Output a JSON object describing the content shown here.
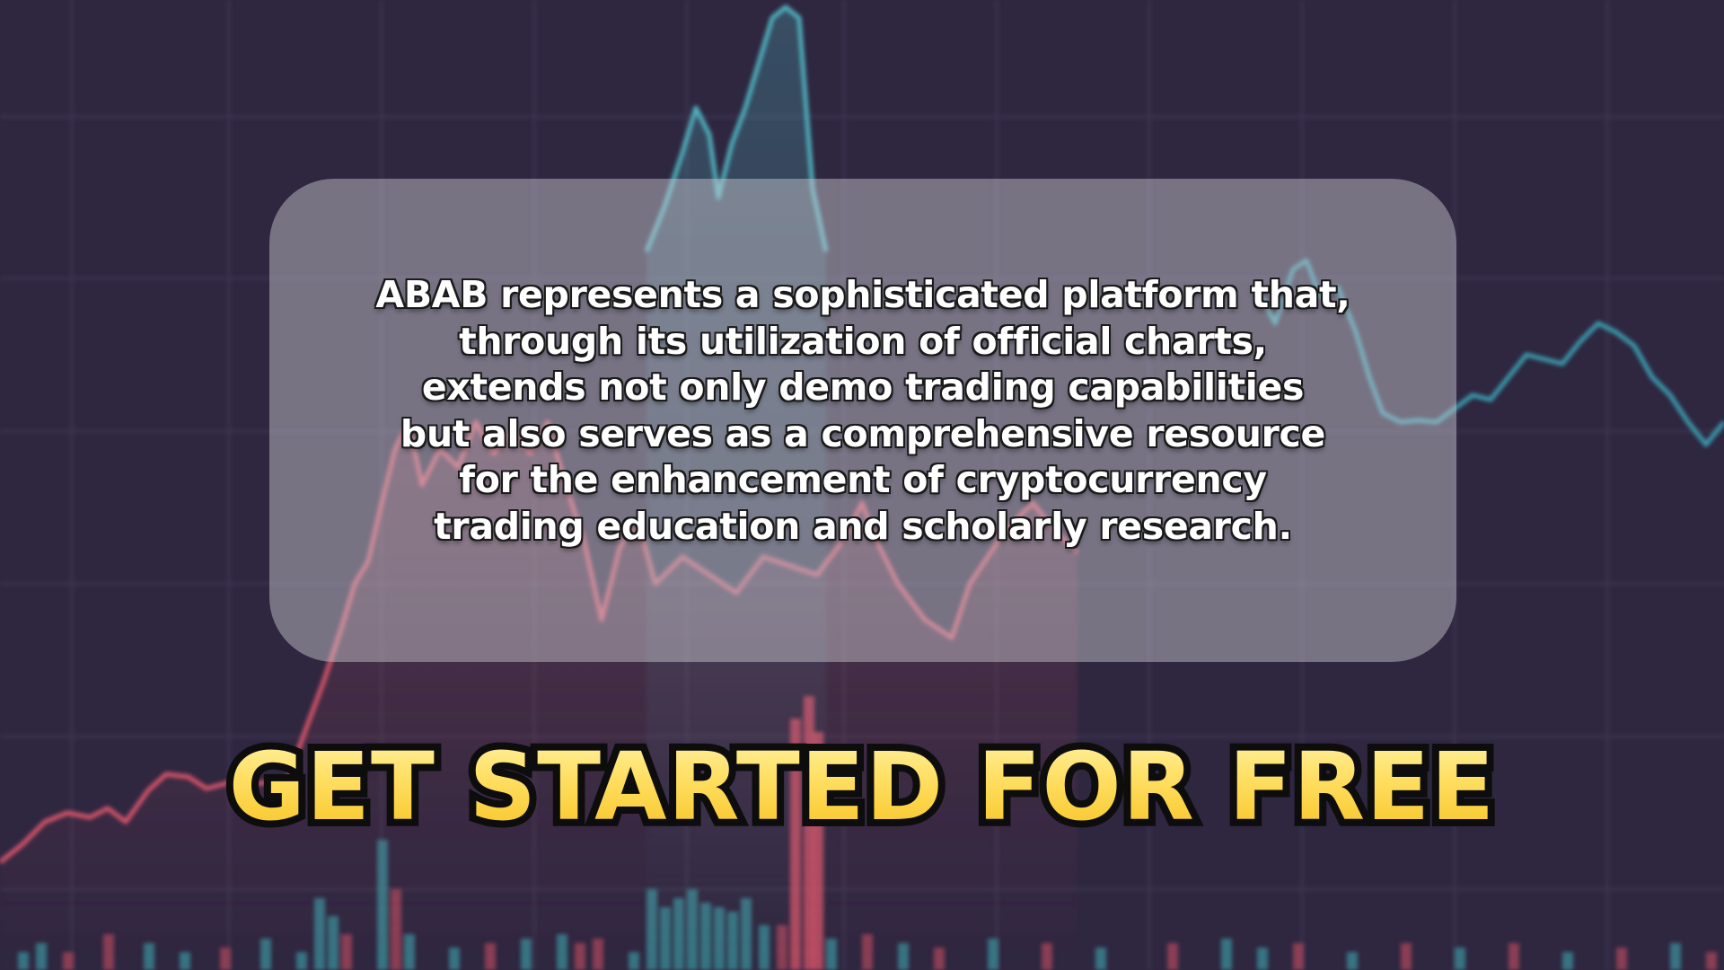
{
  "description_lines": [
    "ABAB represents a sophisticated platform that,",
    "through its utilization of official charts,",
    "extends not only demo trading capabilities",
    "but also serves as a comprehensive resource",
    "for the enhancement of cryptocurrency",
    "trading education and scholarly research."
  ],
  "cta_text": "GET STARTED FOR FREE",
  "colors": {
    "background": "#2f2740",
    "card": "#cdcdd4",
    "cta_fill": "#ffd84a",
    "teal_line": "#4fb3bf",
    "red_line": "#d9546a",
    "grid": "#45405a"
  },
  "icons": []
}
